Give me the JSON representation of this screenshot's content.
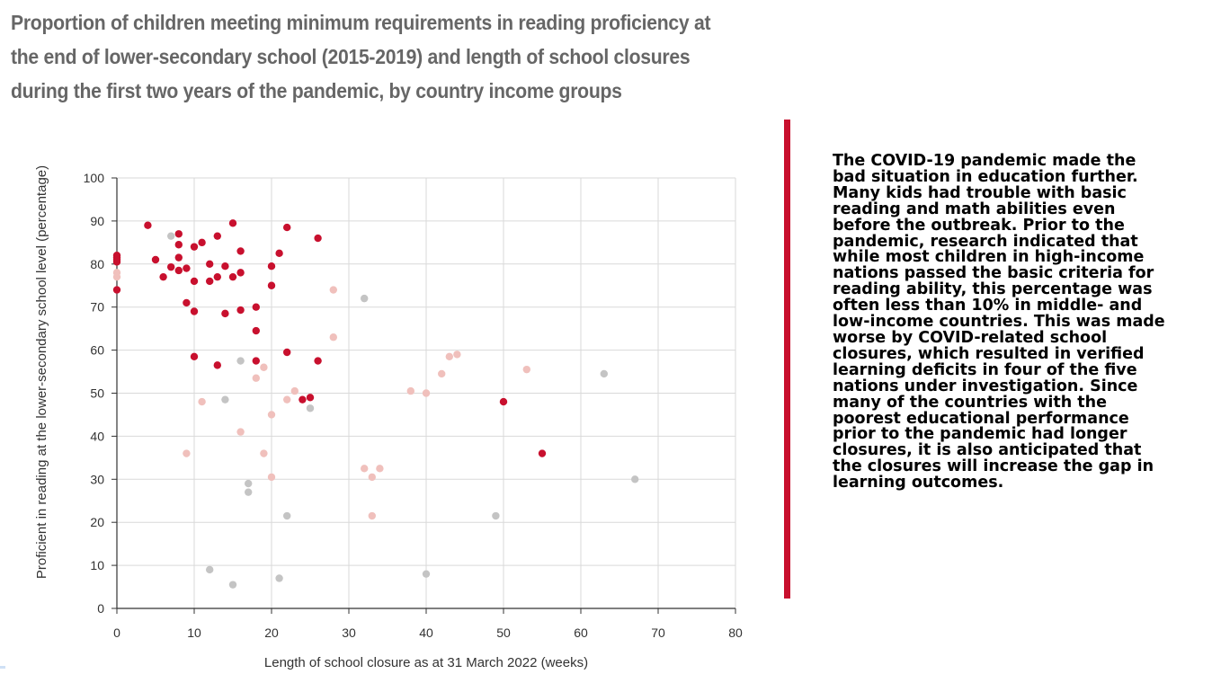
{
  "colors": {
    "high_income": "#c8102e",
    "middle_income": "#f0c0bc",
    "low_income": "#c4c4c4",
    "divider": "#c8102e",
    "title": "#666666"
  },
  "chart_data": {
    "type": "scatter",
    "title": "Proportion of children meeting minimum requirements in reading proficiency at the end of lower-secondary school (2015-2019) and length of school closures during the first two years of the pandemic, by country income groups",
    "xlabel": "Length of school closure as at 31 March 2022 (weeks)",
    "ylabel": "Proficient in reading at the lower-secondary school level (percentage)",
    "xlim": [
      0,
      80
    ],
    "ylim": [
      0,
      100
    ],
    "xticks": [
      "0",
      "10",
      "20",
      "30",
      "40",
      "50",
      "60",
      "70",
      "80"
    ],
    "yticks": [
      "0",
      "10",
      "20",
      "30",
      "40",
      "50",
      "60",
      "70",
      "80",
      "90",
      "100"
    ],
    "grid": true,
    "legend": "none",
    "series": [
      {
        "color": "#c8102e",
        "points": [
          [
            0,
            82
          ],
          [
            0,
            81.5
          ],
          [
            0,
            81
          ],
          [
            0,
            80.5
          ],
          [
            0,
            74
          ],
          [
            4,
            89
          ],
          [
            5,
            81
          ],
          [
            6,
            77
          ],
          [
            7,
            79.3
          ],
          [
            8,
            87
          ],
          [
            8,
            84.5
          ],
          [
            8,
            81.5
          ],
          [
            8,
            78.5
          ],
          [
            9,
            79
          ],
          [
            9,
            71
          ],
          [
            10,
            84
          ],
          [
            10,
            76
          ],
          [
            10,
            69
          ],
          [
            10,
            58.5
          ],
          [
            11,
            85
          ],
          [
            12,
            80
          ],
          [
            12,
            76
          ],
          [
            13,
            86.5
          ],
          [
            13,
            77
          ],
          [
            13,
            56.5
          ],
          [
            14,
            79.5
          ],
          [
            14,
            68.5
          ],
          [
            15,
            89.5
          ],
          [
            15,
            77
          ],
          [
            16,
            83
          ],
          [
            16,
            78
          ],
          [
            16,
            69.3
          ],
          [
            18,
            70
          ],
          [
            18,
            64.5
          ],
          [
            18,
            57.5
          ],
          [
            20,
            79.5
          ],
          [
            20,
            75
          ],
          [
            21,
            82.5
          ],
          [
            22,
            88.5
          ],
          [
            22,
            59.5
          ],
          [
            24,
            48.5
          ],
          [
            25,
            49
          ],
          [
            26,
            86
          ],
          [
            26,
            57.5
          ],
          [
            50,
            48
          ],
          [
            55,
            36
          ]
        ]
      },
      {
        "color": "#f0c0bc",
        "points": [
          [
            0,
            78
          ],
          [
            0,
            77
          ],
          [
            9,
            36
          ],
          [
            11,
            48
          ],
          [
            16,
            41
          ],
          [
            18,
            53.5
          ],
          [
            19,
            56
          ],
          [
            19,
            36
          ],
          [
            20,
            45
          ],
          [
            20,
            30.5
          ],
          [
            22,
            48.5
          ],
          [
            23,
            50.5
          ],
          [
            28,
            74
          ],
          [
            28,
            63
          ],
          [
            32,
            32.5
          ],
          [
            33,
            30.5
          ],
          [
            33,
            21.5
          ],
          [
            34,
            32.5
          ],
          [
            38,
            50.5
          ],
          [
            40,
            50
          ],
          [
            42,
            54.5
          ],
          [
            43,
            58.5
          ],
          [
            44,
            59
          ],
          [
            53,
            55.5
          ]
        ]
      },
      {
        "color": "#c4c4c4",
        "points": [
          [
            7,
            86.5
          ],
          [
            12,
            9
          ],
          [
            14,
            48.5
          ],
          [
            15,
            5.5
          ],
          [
            16,
            57.5
          ],
          [
            17,
            29
          ],
          [
            17,
            27
          ],
          [
            21,
            7
          ],
          [
            22,
            21.5
          ],
          [
            25,
            46.5
          ],
          [
            32,
            72
          ],
          [
            40,
            8
          ],
          [
            49,
            21.5
          ],
          [
            63,
            54.5
          ],
          [
            67,
            30
          ]
        ]
      }
    ]
  },
  "side_text": "The COVID-19 pandemic made the bad situation in education further. Many kids had trouble with basic reading and math abilities even before the outbreak. Prior to the pandemic, research indicated that while most children in high-income nations passed the basic criteria for reading ability, this percentage was often less than 10% in middle- and low-income countries. This was made worse by COVID-related school closures, which resulted in verified learning deficits in four of the five nations under investigation. Since many of the countries with the poorest educational performance prior to the pandemic had longer closures, it is also anticipated that the closures will increase the gap in learning outcomes."
}
